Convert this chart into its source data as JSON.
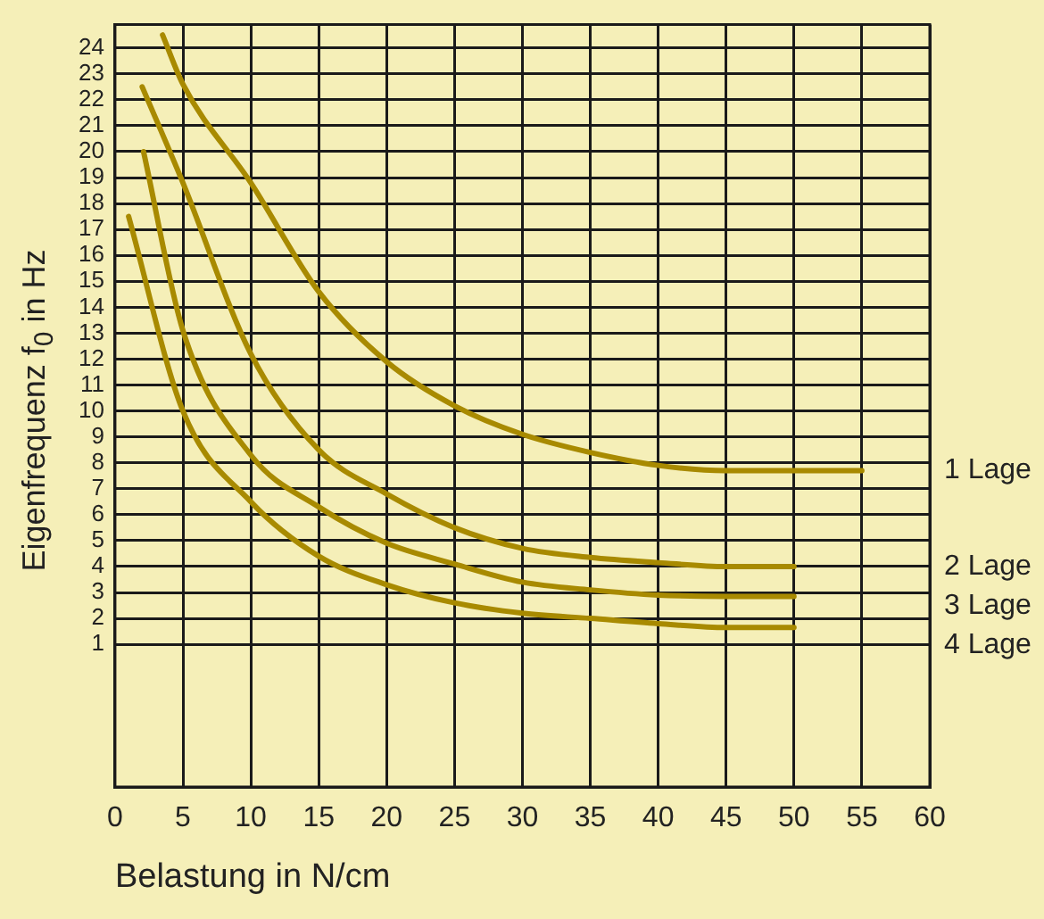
{
  "chart_data": {
    "type": "line",
    "xlabel": "Belastung in N/cm",
    "ylabel": "Eigenfrequenz f$_{0}$ in Hz",
    "xlim": [
      0,
      60
    ],
    "xticks": [
      0,
      5,
      10,
      15,
      20,
      25,
      30,
      35,
      40,
      45,
      50,
      55,
      60
    ],
    "ylim": [
      -4.5,
      24.9
    ],
    "yticks": [
      1,
      2,
      3,
      4,
      5,
      6,
      7,
      8,
      9,
      10,
      11,
      12,
      13,
      14,
      15,
      16,
      17,
      18,
      19,
      20,
      21,
      22,
      23,
      24
    ],
    "grid": true,
    "legend": false,
    "marker": "none",
    "line_style": "solid",
    "series": [
      {
        "name": "1 Lage",
        "color": "#a88a00",
        "x": [
          3.5,
          5,
          10,
          15,
          20,
          25,
          30,
          35,
          40,
          45,
          50,
          55
        ],
        "values": [
          24.5,
          22.6,
          18.8,
          14.6,
          11.9,
          10.2,
          9.1,
          8.4,
          7.9,
          7.7,
          7.7,
          7.7
        ]
      },
      {
        "name": "2 Lage",
        "color": "#a88a00",
        "x": [
          2,
          5,
          10,
          15,
          20,
          25,
          30,
          35,
          40,
          45,
          50
        ],
        "values": [
          22.5,
          18.8,
          12.2,
          8.5,
          6.8,
          5.5,
          4.7,
          4.35,
          4.15,
          4,
          4
        ]
      },
      {
        "name": "3 Lage",
        "color": "#a88a00",
        "x": [
          2.1,
          5,
          10,
          15,
          20,
          25,
          30,
          35,
          40,
          45,
          50
        ],
        "values": [
          20,
          13.1,
          8.3,
          6.3,
          4.9,
          4.1,
          3.4,
          3.1,
          2.9,
          2.85,
          2.85
        ]
      },
      {
        "name": "4 Lage",
        "color": "#a88a00",
        "x": [
          1,
          5,
          10,
          15,
          20,
          25,
          30,
          35,
          40,
          45,
          50
        ],
        "values": [
          17.5,
          10,
          6.5,
          4.4,
          3.3,
          2.6,
          2.2,
          2,
          1.8,
          1.65,
          1.65
        ]
      }
    ]
  }
}
